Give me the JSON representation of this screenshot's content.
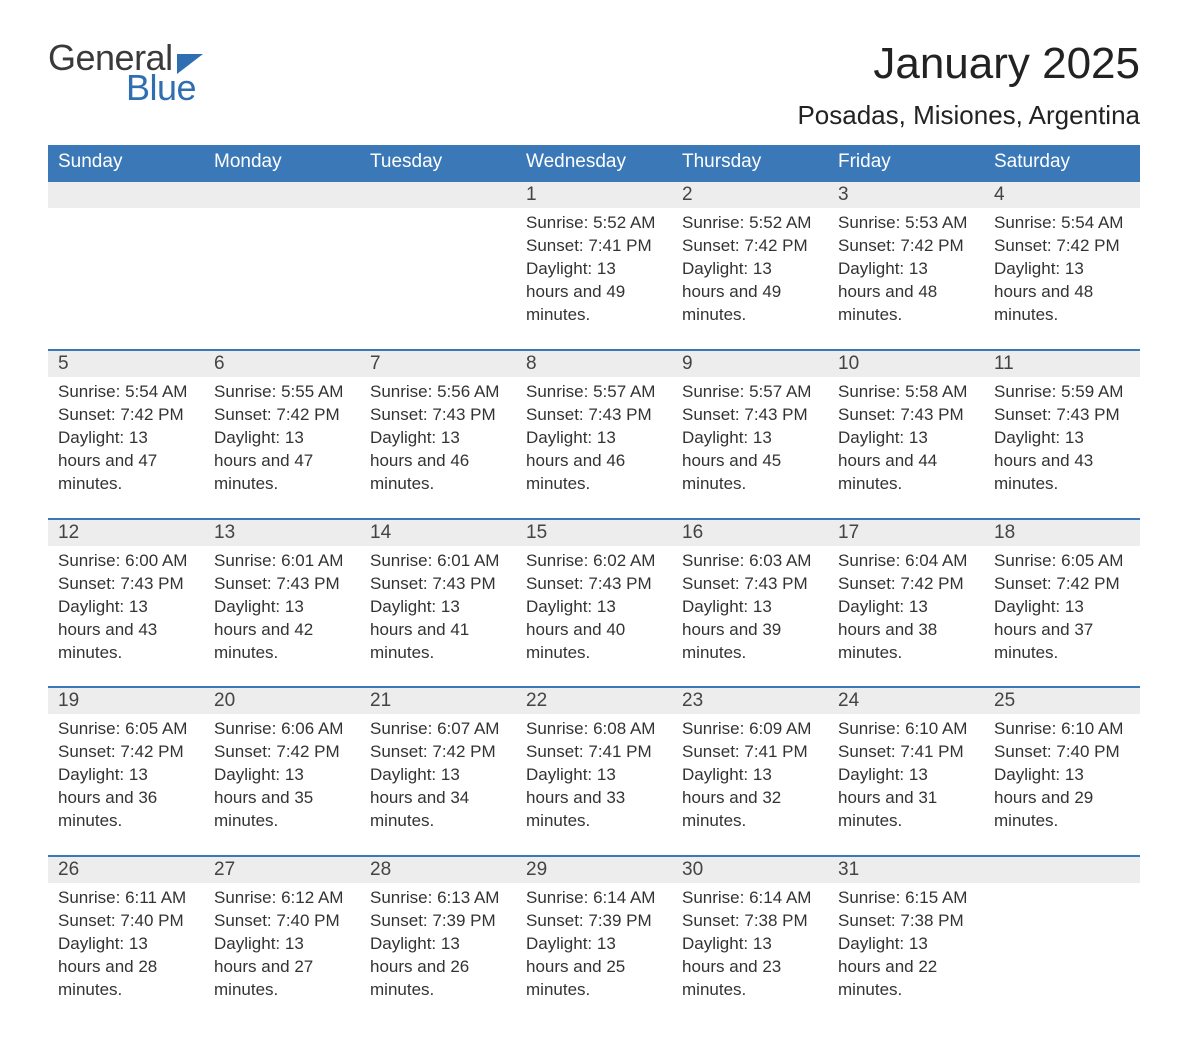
{
  "logo": {
    "word1": "General",
    "word2": "Blue"
  },
  "title": "January 2025",
  "location": "Posadas, Misiones, Argentina",
  "colors": {
    "header_bg": "#3a78b7",
    "header_text": "#ffffff",
    "daynum_bg": "#ededed",
    "text": "#333333",
    "logo_blue": "#2f6fb1",
    "week_border": "#3a78b7",
    "page_bg": "#ffffff"
  },
  "weekdays": [
    "Sunday",
    "Monday",
    "Tuesday",
    "Wednesday",
    "Thursday",
    "Friday",
    "Saturday"
  ],
  "labels": {
    "sunrise": "Sunrise: ",
    "sunset": "Sunset: ",
    "daylight": "Daylight: "
  },
  "weeks": [
    [
      null,
      null,
      null,
      {
        "n": "1",
        "sunrise": "5:52 AM",
        "sunset": "7:41 PM",
        "daylight": "13 hours and 49 minutes."
      },
      {
        "n": "2",
        "sunrise": "5:52 AM",
        "sunset": "7:42 PM",
        "daylight": "13 hours and 49 minutes."
      },
      {
        "n": "3",
        "sunrise": "5:53 AM",
        "sunset": "7:42 PM",
        "daylight": "13 hours and 48 minutes."
      },
      {
        "n": "4",
        "sunrise": "5:54 AM",
        "sunset": "7:42 PM",
        "daylight": "13 hours and 48 minutes."
      }
    ],
    [
      {
        "n": "5",
        "sunrise": "5:54 AM",
        "sunset": "7:42 PM",
        "daylight": "13 hours and 47 minutes."
      },
      {
        "n": "6",
        "sunrise": "5:55 AM",
        "sunset": "7:42 PM",
        "daylight": "13 hours and 47 minutes."
      },
      {
        "n": "7",
        "sunrise": "5:56 AM",
        "sunset": "7:43 PM",
        "daylight": "13 hours and 46 minutes."
      },
      {
        "n": "8",
        "sunrise": "5:57 AM",
        "sunset": "7:43 PM",
        "daylight": "13 hours and 46 minutes."
      },
      {
        "n": "9",
        "sunrise": "5:57 AM",
        "sunset": "7:43 PM",
        "daylight": "13 hours and 45 minutes."
      },
      {
        "n": "10",
        "sunrise": "5:58 AM",
        "sunset": "7:43 PM",
        "daylight": "13 hours and 44 minutes."
      },
      {
        "n": "11",
        "sunrise": "5:59 AM",
        "sunset": "7:43 PM",
        "daylight": "13 hours and 43 minutes."
      }
    ],
    [
      {
        "n": "12",
        "sunrise": "6:00 AM",
        "sunset": "7:43 PM",
        "daylight": "13 hours and 43 minutes."
      },
      {
        "n": "13",
        "sunrise": "6:01 AM",
        "sunset": "7:43 PM",
        "daylight": "13 hours and 42 minutes."
      },
      {
        "n": "14",
        "sunrise": "6:01 AM",
        "sunset": "7:43 PM",
        "daylight": "13 hours and 41 minutes."
      },
      {
        "n": "15",
        "sunrise": "6:02 AM",
        "sunset": "7:43 PM",
        "daylight": "13 hours and 40 minutes."
      },
      {
        "n": "16",
        "sunrise": "6:03 AM",
        "sunset": "7:43 PM",
        "daylight": "13 hours and 39 minutes."
      },
      {
        "n": "17",
        "sunrise": "6:04 AM",
        "sunset": "7:42 PM",
        "daylight": "13 hours and 38 minutes."
      },
      {
        "n": "18",
        "sunrise": "6:05 AM",
        "sunset": "7:42 PM",
        "daylight": "13 hours and 37 minutes."
      }
    ],
    [
      {
        "n": "19",
        "sunrise": "6:05 AM",
        "sunset": "7:42 PM",
        "daylight": "13 hours and 36 minutes."
      },
      {
        "n": "20",
        "sunrise": "6:06 AM",
        "sunset": "7:42 PM",
        "daylight": "13 hours and 35 minutes."
      },
      {
        "n": "21",
        "sunrise": "6:07 AM",
        "sunset": "7:42 PM",
        "daylight": "13 hours and 34 minutes."
      },
      {
        "n": "22",
        "sunrise": "6:08 AM",
        "sunset": "7:41 PM",
        "daylight": "13 hours and 33 minutes."
      },
      {
        "n": "23",
        "sunrise": "6:09 AM",
        "sunset": "7:41 PM",
        "daylight": "13 hours and 32 minutes."
      },
      {
        "n": "24",
        "sunrise": "6:10 AM",
        "sunset": "7:41 PM",
        "daylight": "13 hours and 31 minutes."
      },
      {
        "n": "25",
        "sunrise": "6:10 AM",
        "sunset": "7:40 PM",
        "daylight": "13 hours and 29 minutes."
      }
    ],
    [
      {
        "n": "26",
        "sunrise": "6:11 AM",
        "sunset": "7:40 PM",
        "daylight": "13 hours and 28 minutes."
      },
      {
        "n": "27",
        "sunrise": "6:12 AM",
        "sunset": "7:40 PM",
        "daylight": "13 hours and 27 minutes."
      },
      {
        "n": "28",
        "sunrise": "6:13 AM",
        "sunset": "7:39 PM",
        "daylight": "13 hours and 26 minutes."
      },
      {
        "n": "29",
        "sunrise": "6:14 AM",
        "sunset": "7:39 PM",
        "daylight": "13 hours and 25 minutes."
      },
      {
        "n": "30",
        "sunrise": "6:14 AM",
        "sunset": "7:38 PM",
        "daylight": "13 hours and 23 minutes."
      },
      {
        "n": "31",
        "sunrise": "6:15 AM",
        "sunset": "7:38 PM",
        "daylight": "13 hours and 22 minutes."
      },
      null
    ]
  ]
}
